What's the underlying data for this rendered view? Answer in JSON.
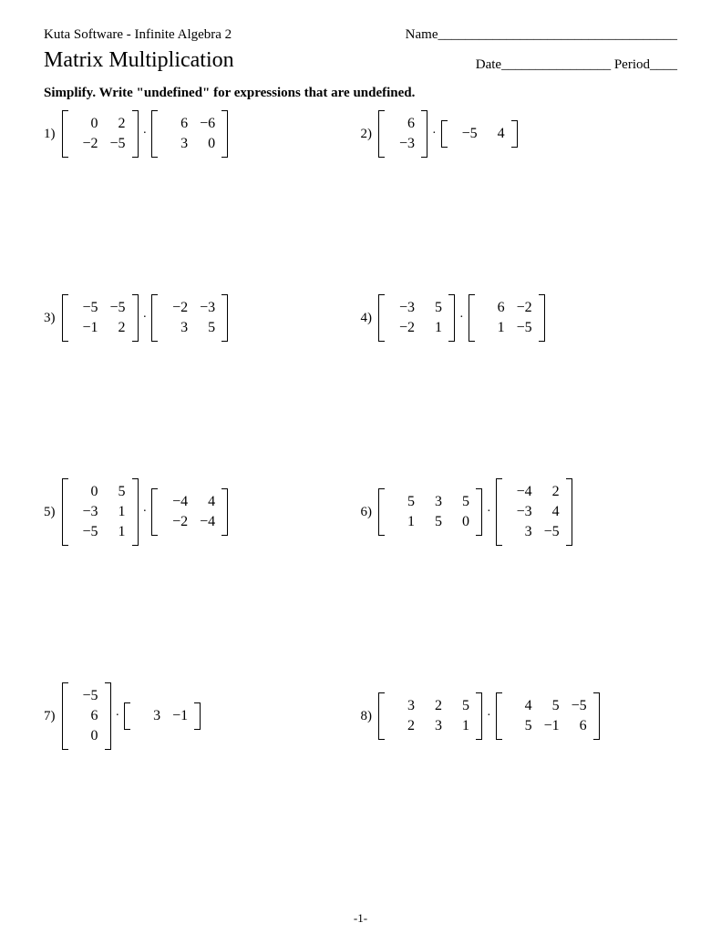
{
  "header": {
    "software": "Kuta Software - Infinite Algebra 2",
    "name_label": "Name___________________________________",
    "date_label": "Date________________",
    "period_label": "Period____"
  },
  "title": "Matrix Multiplication",
  "instruction": "Simplify.  Write \"undefined\" for expressions that are undefined.",
  "footer": "-1-",
  "problems": [
    {
      "n": "1)",
      "A": [
        [
          "0",
          "2"
        ],
        [
          "−2",
          "−5"
        ]
      ],
      "B": [
        [
          "6",
          "−6"
        ],
        [
          "3",
          "0"
        ]
      ]
    },
    {
      "n": "2)",
      "A": [
        [
          "6"
        ],
        [
          "−3"
        ]
      ],
      "B": [
        [
          "−5",
          "4"
        ]
      ]
    },
    {
      "n": "3)",
      "A": [
        [
          "−5",
          "−5"
        ],
        [
          "−1",
          "2"
        ]
      ],
      "B": [
        [
          "−2",
          "−3"
        ],
        [
          "3",
          "5"
        ]
      ]
    },
    {
      "n": "4)",
      "A": [
        [
          "−3",
          "5"
        ],
        [
          "−2",
          "1"
        ]
      ],
      "B": [
        [
          "6",
          "−2"
        ],
        [
          "1",
          "−5"
        ]
      ]
    },
    {
      "n": "5)",
      "A": [
        [
          "0",
          "5"
        ],
        [
          "−3",
          "1"
        ],
        [
          "−5",
          "1"
        ]
      ],
      "B": [
        [
          "−4",
          "4"
        ],
        [
          "−2",
          "−4"
        ]
      ]
    },
    {
      "n": "6)",
      "A": [
        [
          "5",
          "3",
          "5"
        ],
        [
          "1",
          "5",
          "0"
        ]
      ],
      "B": [
        [
          "−4",
          "2"
        ],
        [
          "−3",
          "4"
        ],
        [
          "3",
          "−5"
        ]
      ]
    },
    {
      "n": "7)",
      "A": [
        [
          "−5"
        ],
        [
          "6"
        ],
        [
          "0"
        ]
      ],
      "B": [
        [
          "3",
          "−1"
        ]
      ]
    },
    {
      "n": "8)",
      "A": [
        [
          "3",
          "2",
          "5"
        ],
        [
          "2",
          "3",
          "1"
        ]
      ],
      "B": [
        [
          "4",
          "5",
          "−5"
        ],
        [
          "5",
          "−1",
          "6"
        ]
      ]
    }
  ]
}
